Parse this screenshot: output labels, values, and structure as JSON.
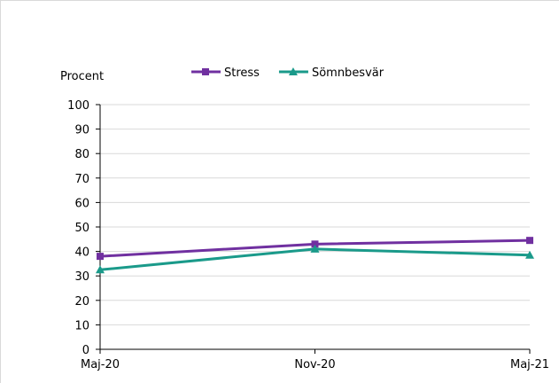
{
  "chart_data": {
    "type": "line",
    "ylabel": "Procent",
    "categories": [
      "Maj-20",
      "Nov-20",
      "Maj-21"
    ],
    "ylim": [
      0,
      100
    ],
    "yticks": [
      0,
      10,
      20,
      30,
      40,
      50,
      60,
      70,
      80,
      90,
      100
    ],
    "grid": true,
    "legend_position": "top",
    "series": [
      {
        "name": "Stress",
        "values": [
          38,
          43,
          44.5
        ],
        "color": "#7030a0",
        "marker": "square"
      },
      {
        "name": "Sömnbesvär",
        "values": [
          32.5,
          41,
          38.5
        ],
        "color": "#1a9a8a",
        "marker": "triangle"
      }
    ]
  }
}
